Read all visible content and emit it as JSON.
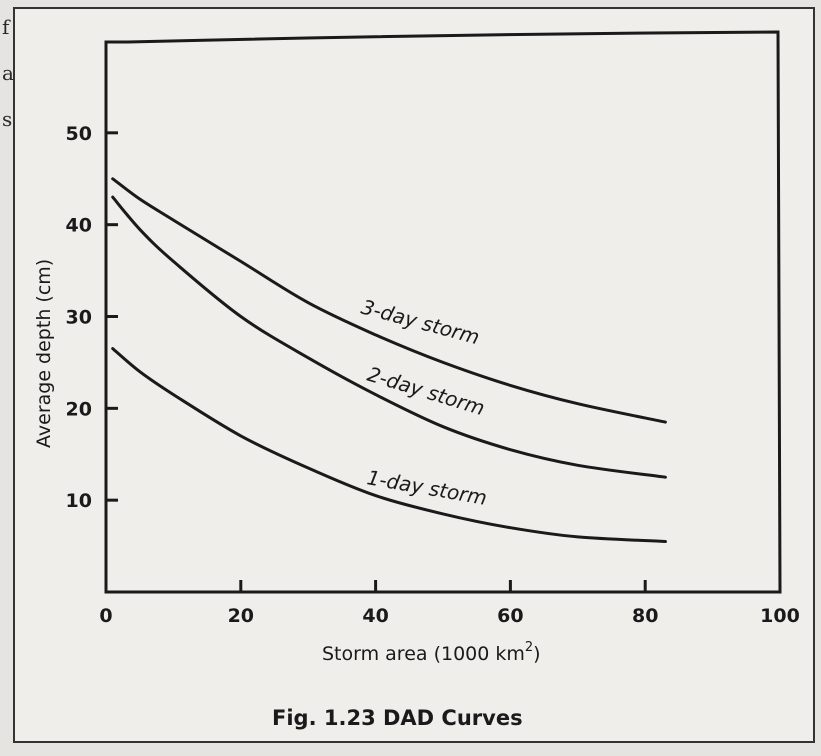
{
  "margin_text": [
    "f",
    "a",
    "s"
  ],
  "caption": "Fig. 1.23 DAD Curves",
  "chart_data": {
    "type": "line",
    "xlabel": "Storm area (1000 km",
    "xlabel_sup": "2",
    "xlabel_close": ")",
    "ylabel": "Average depth  (cm)",
    "xlim": [
      0,
      100
    ],
    "ylim": [
      0,
      60
    ],
    "x_ticks": [
      0,
      20,
      40,
      60,
      80,
      100
    ],
    "y_ticks": [
      10,
      20,
      30,
      40,
      50
    ],
    "grid": false,
    "series": [
      {
        "name": "3-day storm",
        "x": [
          1,
          5,
          10,
          20,
          30,
          40,
          50,
          60,
          70,
          83
        ],
        "y": [
          45,
          42.8,
          40.5,
          36,
          31.5,
          28,
          25,
          22.5,
          20.5,
          18.5
        ]
      },
      {
        "name": "2-day storm",
        "x": [
          1,
          5,
          10,
          20,
          30,
          40,
          50,
          60,
          70,
          83
        ],
        "y": [
          43,
          39.5,
          36,
          30,
          25.5,
          21.5,
          18,
          15.5,
          13.8,
          12.5
        ]
      },
      {
        "name": "1-day storm",
        "x": [
          1,
          5,
          10,
          20,
          30,
          40,
          50,
          60,
          70,
          83
        ],
        "y": [
          26.5,
          24,
          21.5,
          17,
          13.5,
          10.5,
          8.5,
          7,
          6,
          5.5
        ]
      }
    ]
  }
}
